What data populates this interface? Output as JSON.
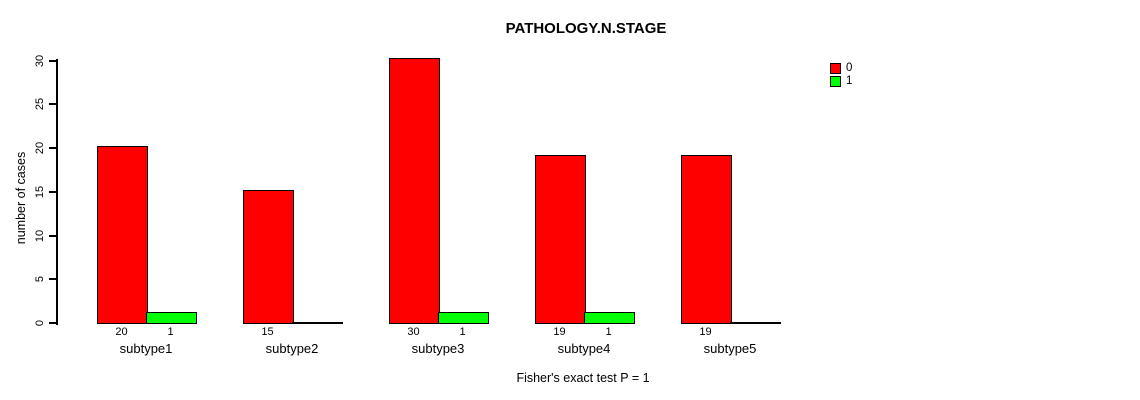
{
  "chart_data": {
    "type": "bar",
    "title": "PATHOLOGY.N.STAGE",
    "categories": [
      "subtype1",
      "subtype2",
      "subtype3",
      "subtype4",
      "subtype5"
    ],
    "series": [
      {
        "name": "0",
        "color": "#ff0000",
        "values": [
          20,
          15,
          30,
          19,
          19
        ]
      },
      {
        "name": "1",
        "color": "#00ff00",
        "values": [
          1,
          0,
          1,
          1,
          0
        ]
      }
    ],
    "bar_value_labels_shown": true,
    "zero_value_labels_hidden": true,
    "xlabel": "",
    "ylabel": "number of cases",
    "yticks": [
      0,
      5,
      10,
      15,
      20,
      25,
      30
    ],
    "ylim": [
      0,
      30
    ],
    "grid": false,
    "legend_position": "top-right",
    "annotation": "Fisher's exact test P = 1"
  },
  "colors": {
    "background": "#ffffff",
    "bar_border": "#000000",
    "text": "#000000"
  }
}
